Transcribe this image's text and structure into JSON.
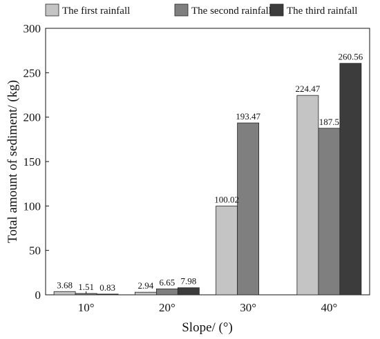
{
  "chart_data": {
    "type": "bar",
    "categories": [
      "10°",
      "20°",
      "30°",
      "40°"
    ],
    "series": [
      {
        "name": "The first rainfall",
        "color": "#c4c4c4",
        "values": [
          3.68,
          2.94,
          100.02,
          224.47
        ]
      },
      {
        "name": "The second rainfall",
        "color": "#7f7f7f",
        "values": [
          1.51,
          6.65,
          193.47,
          187.5
        ]
      },
      {
        "name": "The third rainfall",
        "color": "#3c3c3c",
        "values": [
          0.83,
          7.98,
          null,
          260.56
        ]
      }
    ],
    "data_labels": [
      [
        "3.68",
        "2.94",
        "100.02",
        "224.47"
      ],
      [
        "1.51",
        "6.65",
        "193.47",
        "187.5"
      ],
      [
        "0.83",
        "7.98",
        "",
        "260.56"
      ]
    ],
    "title": "",
    "xlabel": "Slope/ (°)",
    "ylabel": "Total amount of sediment/ (kg)",
    "ylim": [
      0,
      300
    ],
    "yticks": [
      "0",
      "50",
      "100",
      "150",
      "200",
      "250",
      "300"
    ],
    "grid": false,
    "legend_position": "top"
  }
}
